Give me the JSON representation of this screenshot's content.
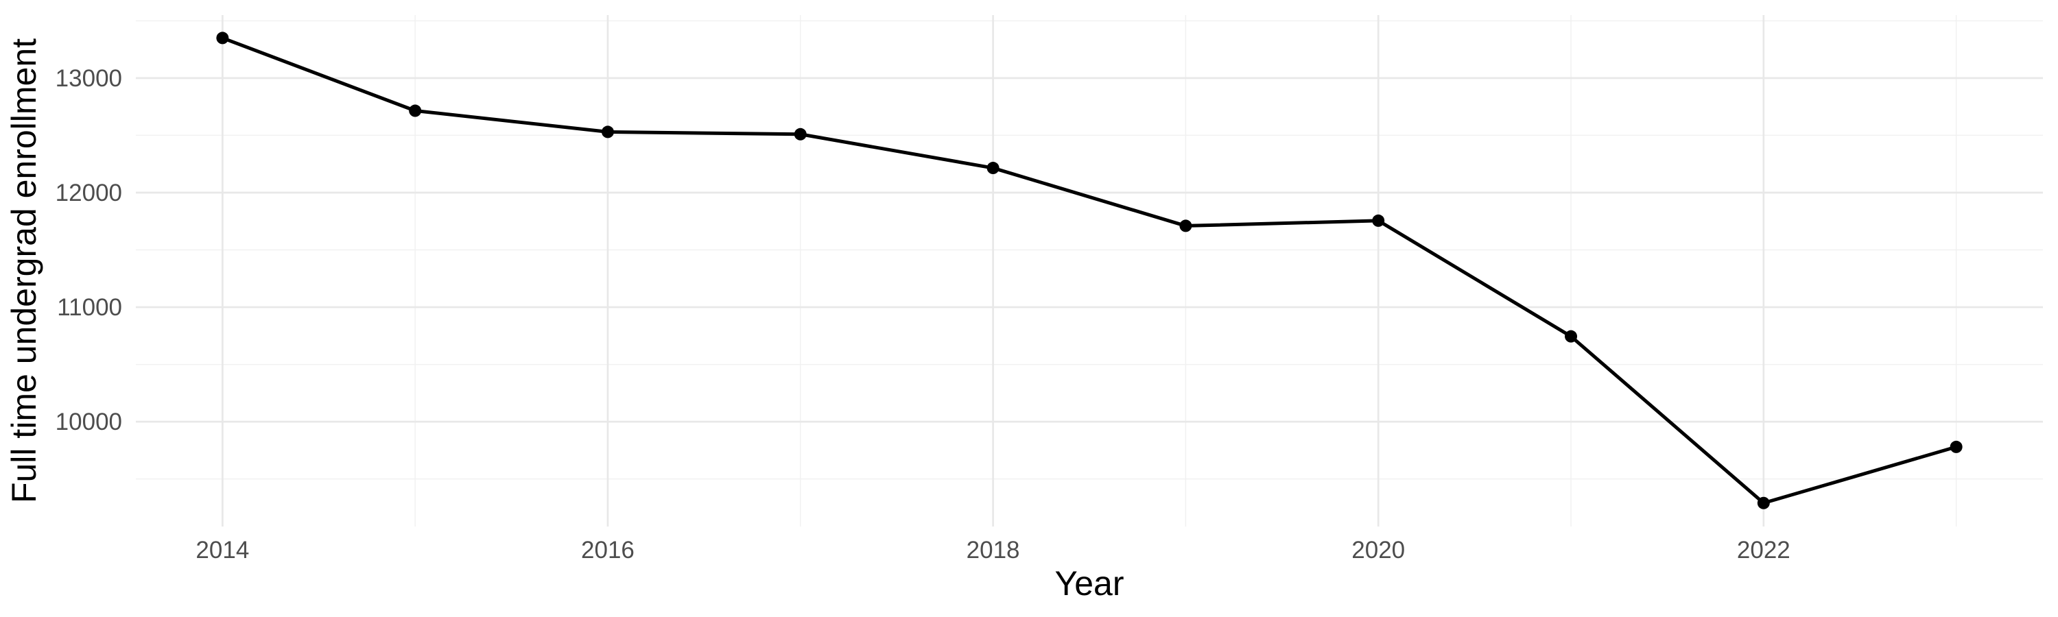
{
  "chart_data": {
    "type": "line",
    "title": "",
    "xlabel": "Year",
    "ylabel": "Full time undergrad enrollment",
    "series": [
      {
        "name": "Full time undergrad enrollment",
        "x": [
          2014,
          2015,
          2016,
          2017,
          2018,
          2019,
          2020,
          2021,
          2022,
          2023
        ],
        "values": [
          13350,
          12715,
          12530,
          12510,
          12215,
          11710,
          11755,
          10745,
          9290,
          9780
        ]
      }
    ],
    "x_ticks": {
      "values": [
        2014,
        2016,
        2018,
        2020,
        2022
      ],
      "labels": [
        "2014",
        "2016",
        "2018",
        "2020",
        "2022"
      ]
    },
    "x_minor_breaks": [
      2015,
      2017,
      2019,
      2021,
      2023
    ],
    "y_ticks": {
      "values": [
        10000,
        11000,
        12000,
        13000
      ],
      "labels": [
        "10000",
        "11000",
        "12000",
        "13000"
      ]
    },
    "y_minor_breaks": [
      9500,
      10500,
      11500,
      12500,
      13500
    ],
    "xlim": [
      2013.55,
      2023.45
    ],
    "ylim": [
      9085,
      13550
    ],
    "grid": "on",
    "legend": "none",
    "colors": {
      "line": "#000000",
      "point": "#000000",
      "grid_major": "#e8e8e8",
      "grid_minor": "#f1f1f1",
      "tick_label": "#4d4d4d",
      "axis_title": "#000000",
      "background": "#ffffff"
    }
  }
}
